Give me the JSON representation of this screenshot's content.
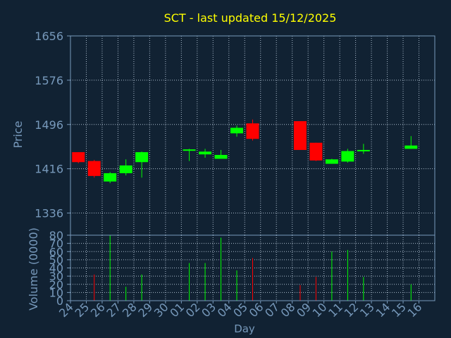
{
  "chart_data": {
    "type": "candlestick",
    "title": "SCT - last updated 15/12/2025",
    "xlabel": "Day",
    "price_panel": {
      "ylabel": "Price",
      "ylim": [
        1296,
        1656
      ],
      "yticks": [
        1336,
        1416,
        1496,
        1576,
        1656
      ],
      "grid": true
    },
    "volume_panel": {
      "ylabel": "Volume (0000)",
      "ylim": [
        0,
        80
      ],
      "yticks": [
        0,
        10,
        20,
        30,
        40,
        50,
        60,
        70,
        80
      ],
      "grid": true
    },
    "categories": [
      "24",
      "25",
      "26",
      "27",
      "28",
      "29",
      "30",
      "01",
      "02",
      "03",
      "04",
      "05",
      "06",
      "07",
      "08",
      "09",
      "10",
      "11",
      "12",
      "13",
      "14",
      "15",
      "16"
    ],
    "candles": [
      {
        "day": "24",
        "open": 1446,
        "high": 1446,
        "low": 1426,
        "close": 1428
      },
      {
        "day": "25",
        "open": 1430,
        "high": 1432,
        "low": 1400,
        "close": 1403
      },
      {
        "day": "26",
        "open": 1393,
        "high": 1410,
        "low": 1390,
        "close": 1408
      },
      {
        "day": "27",
        "open": 1408,
        "high": 1433,
        "low": 1404,
        "close": 1422
      },
      {
        "day": "28",
        "open": 1428,
        "high": 1447,
        "low": 1400,
        "close": 1446
      },
      {
        "day": "01",
        "open": 1450,
        "high": 1452,
        "low": 1430,
        "close": 1451
      },
      {
        "day": "02",
        "open": 1442,
        "high": 1452,
        "low": 1436,
        "close": 1447
      },
      {
        "day": "03",
        "open": 1434,
        "high": 1450,
        "low": 1434,
        "close": 1441
      },
      {
        "day": "04",
        "open": 1480,
        "high": 1494,
        "low": 1474,
        "close": 1490
      },
      {
        "day": "05",
        "open": 1498,
        "high": 1505,
        "low": 1467,
        "close": 1470
      },
      {
        "day": "08",
        "open": 1502,
        "high": 1502,
        "low": 1450,
        "close": 1450
      },
      {
        "day": "09",
        "open": 1463,
        "high": 1463,
        "low": 1430,
        "close": 1431
      },
      {
        "day": "10",
        "open": 1425,
        "high": 1434,
        "low": 1425,
        "close": 1433
      },
      {
        "day": "11",
        "open": 1429,
        "high": 1452,
        "low": 1427,
        "close": 1448
      },
      {
        "day": "12",
        "open": 1448,
        "high": 1461,
        "low": 1443,
        "close": 1450
      },
      {
        "day": "15",
        "open": 1452,
        "high": 1475,
        "low": 1452,
        "close": 1458
      }
    ],
    "volumes": [
      {
        "day": "25",
        "value": 32,
        "direction": "down"
      },
      {
        "day": "26",
        "value": 80,
        "direction": "up"
      },
      {
        "day": "27",
        "value": 17,
        "direction": "up"
      },
      {
        "day": "28",
        "value": 32,
        "direction": "up"
      },
      {
        "day": "01",
        "value": 46,
        "direction": "up"
      },
      {
        "day": "02",
        "value": 46,
        "direction": "up"
      },
      {
        "day": "03",
        "value": 77,
        "direction": "up"
      },
      {
        "day": "04",
        "value": 37,
        "direction": "up"
      },
      {
        "day": "05",
        "value": 52,
        "direction": "down"
      },
      {
        "day": "08",
        "value": 19,
        "direction": "down"
      },
      {
        "day": "09",
        "value": 29,
        "direction": "down"
      },
      {
        "day": "10",
        "value": 60,
        "direction": "up"
      },
      {
        "day": "11",
        "value": 62,
        "direction": "up"
      },
      {
        "day": "12",
        "value": 29,
        "direction": "up"
      },
      {
        "day": "15",
        "value": 20,
        "direction": "up"
      }
    ],
    "colors": {
      "background": "#112233",
      "up": "#00ff00",
      "down": "#ff0000",
      "title": "#ffff00",
      "axis_text": "#7799bb",
      "grid": "#aabbcc",
      "frame": "#7799bb"
    }
  }
}
